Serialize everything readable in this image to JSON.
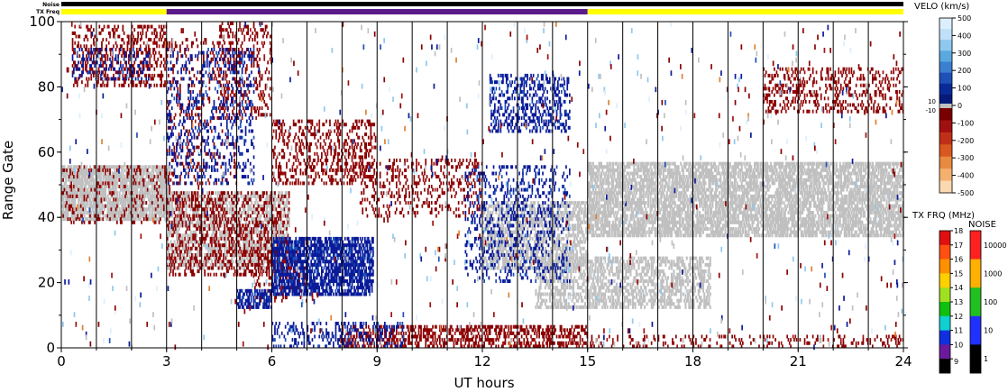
{
  "chart_data": {
    "type": "heatmap",
    "xlabel": "UT hours",
    "ylabel": "Range Gate",
    "xlim": [
      0,
      24
    ],
    "ylim": [
      0,
      100
    ],
    "x_ticks": [
      0,
      3,
      6,
      9,
      12,
      15,
      18,
      21,
      24
    ],
    "y_ticks": [
      0,
      20,
      40,
      60,
      80,
      100
    ],
    "vertical_lines_every_hours": 1,
    "top_bars": {
      "noise_label": "Noise",
      "txfreq_label": "TX Freq",
      "txfreq_segments": [
        {
          "start": 0,
          "end": 3,
          "color": "#ffff00"
        },
        {
          "start": 3,
          "end": 15,
          "color": "#5a1a8a"
        },
        {
          "start": 15,
          "end": 24,
          "color": "#ffff00"
        }
      ]
    },
    "velocity_scale": {
      "title": "VELO (km/s)",
      "ticks": [
        "500",
        "400",
        "300",
        "200",
        "100",
        "0",
        "-100",
        "-200",
        "-300",
        "-400",
        "-500"
      ],
      "ground_scatter_labels": [
        "10",
        "-10"
      ],
      "positive_colors": [
        "#dcefff",
        "#bfe0f8",
        "#8ec8ee",
        "#5aa8e0",
        "#3a7fd0",
        "#1f50b8",
        "#0a2a9a",
        "#061a78"
      ],
      "negative_colors": [
        "#7a0000",
        "#a01010",
        "#c03018",
        "#d85820",
        "#e88a40",
        "#f5b070",
        "#fbd8b0"
      ]
    },
    "txfreq_scale": {
      "title": "TX FRQ (MHz)",
      "ticks": [
        "18",
        "17",
        "16",
        "15",
        "14",
        "13",
        "12",
        "11",
        "10",
        "9"
      ],
      "colors": [
        "#e01010",
        "#ff5010",
        "#ff9000",
        "#ffd000",
        "#a0e020",
        "#10c010",
        "#10d0d0",
        "#1030e0",
        "#6a1a9a",
        "#000000"
      ]
    },
    "noise_scale": {
      "title": "NOISE",
      "ticks": [
        "10000",
        "1000",
        "100",
        "10",
        "1"
      ],
      "colors": [
        "#ff2020",
        "#ffb000",
        "#20c020",
        "#2030ff",
        "#000000"
      ]
    },
    "colors": {
      "ground_scatter": "#c0c0c0",
      "dark_red": "#8a0000",
      "dark_blue": "#0a1a98",
      "light_blue": "#8ec8ee",
      "orange": "#e08030"
    },
    "regions": [
      {
        "kind": "gs",
        "t0": 0.0,
        "t1": 3.1,
        "g0": 39,
        "g1": 56,
        "density": 0.75
      },
      {
        "kind": "gs",
        "t0": 15.0,
        "t1": 24.0,
        "g0": 34,
        "g1": 57,
        "density": 0.65
      },
      {
        "kind": "gs",
        "t0": 3.0,
        "t1": 6.5,
        "g0": 24,
        "g1": 48,
        "density": 0.45
      },
      {
        "kind": "gs",
        "t0": 12.0,
        "t1": 15.0,
        "g0": 24,
        "g1": 45,
        "density": 0.5
      },
      {
        "kind": "gs",
        "t0": 13.5,
        "t1": 18.5,
        "g0": 12,
        "g1": 28,
        "density": 0.45
      },
      {
        "kind": "red",
        "t0": 0.0,
        "t1": 3.1,
        "g0": 38,
        "g1": 56,
        "density": 0.12
      },
      {
        "kind": "red",
        "t0": 0.3,
        "t1": 3.0,
        "g0": 80,
        "g1": 99,
        "density": 0.3
      },
      {
        "kind": "red",
        "t0": 3.0,
        "t1": 6.5,
        "g0": 22,
        "g1": 48,
        "density": 0.3
      },
      {
        "kind": "red",
        "t0": 3.0,
        "t1": 5.0,
        "g0": 50,
        "g1": 95,
        "density": 0.12
      },
      {
        "kind": "red",
        "t0": 4.5,
        "t1": 6.0,
        "g0": 70,
        "g1": 100,
        "density": 0.2
      },
      {
        "kind": "red",
        "t0": 6.0,
        "t1": 9.0,
        "g0": 50,
        "g1": 70,
        "density": 0.3
      },
      {
        "kind": "red",
        "t0": 8.5,
        "t1": 12.0,
        "g0": 40,
        "g1": 58,
        "density": 0.2
      },
      {
        "kind": "red",
        "t0": 5.5,
        "t1": 7.0,
        "g0": 14,
        "g1": 30,
        "density": 0.25
      },
      {
        "kind": "red",
        "t0": 8.0,
        "t1": 15.0,
        "g0": 0,
        "g1": 7,
        "density": 0.45
      },
      {
        "kind": "red",
        "t0": 15.0,
        "t1": 24.0,
        "g0": 0,
        "g1": 4,
        "density": 0.18
      },
      {
        "kind": "red",
        "t0": 20.0,
        "t1": 24.0,
        "g0": 72,
        "g1": 86,
        "density": 0.25
      },
      {
        "kind": "blue",
        "t0": 5.0,
        "t1": 6.0,
        "g0": 12,
        "g1": 18,
        "density": 0.65
      },
      {
        "kind": "blue",
        "t0": 6.0,
        "t1": 8.9,
        "g0": 16,
        "g1": 34,
        "density": 0.7
      },
      {
        "kind": "blue",
        "t0": 3.0,
        "t1": 5.5,
        "g0": 50,
        "g1": 92,
        "density": 0.18
      },
      {
        "kind": "blue",
        "t0": 11.5,
        "t1": 14.5,
        "g0": 20,
        "g1": 56,
        "density": 0.2
      },
      {
        "kind": "blue",
        "t0": 12.2,
        "t1": 14.5,
        "g0": 66,
        "g1": 84,
        "density": 0.35
      },
      {
        "kind": "blue",
        "t0": 6.0,
        "t1": 9.8,
        "g0": 0,
        "g1": 8,
        "density": 0.25
      },
      {
        "kind": "blue",
        "t0": 0.3,
        "t1": 2.5,
        "g0": 82,
        "g1": 92,
        "density": 0.2
      }
    ],
    "scatter_sparse": [
      {
        "kind": "lightblue",
        "t0": 0,
        "t1": 24,
        "g0": 0,
        "g1": 100,
        "count": 230
      },
      {
        "kind": "red",
        "t0": 0,
        "t1": 24,
        "g0": 0,
        "g1": 100,
        "count": 260
      },
      {
        "kind": "blue",
        "t0": 0,
        "t1": 24,
        "g0": 0,
        "g1": 100,
        "count": 150
      },
      {
        "kind": "orange",
        "t0": 0,
        "t1": 24,
        "g0": 0,
        "g1": 100,
        "count": 40
      },
      {
        "kind": "gs",
        "t0": 0,
        "t1": 24,
        "g0": 0,
        "g1": 100,
        "count": 200
      }
    ]
  }
}
